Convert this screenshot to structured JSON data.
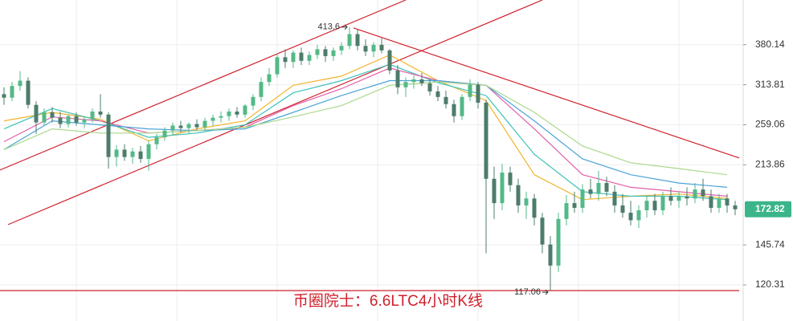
{
  "chart_data": {
    "type": "candlestick",
    "caption": "币圈院士：6.6LTC4小时K线",
    "log_scale": true,
    "ylim": [
      101.2,
      471
    ],
    "xlim": [
      -0.5,
      91.5
    ],
    "yticks": [
      380.14,
      313.81,
      259.06,
      213.86,
      145.74,
      120.31
    ],
    "grid": true,
    "up_color": "#53b987",
    "down_color": "#4d7c6a",
    "last_price_color": "#3bb58a",
    "candles": {
      "open": [
        300,
        295,
        312,
        320,
        285,
        262,
        275,
        268,
        260,
        270,
        262,
        266,
        276,
        272,
        222,
        230,
        222,
        228,
        220,
        236,
        244,
        252,
        258,
        255,
        260,
        256,
        264,
        268,
        270,
        276,
        272,
        284,
        296,
        318,
        330,
        358,
        350,
        366,
        352,
        362,
        372,
        360,
        370,
        378,
        400,
        378,
        368,
        380,
        370,
        336,
        310,
        318,
        322,
        316,
        304,
        296,
        286,
        270,
        296,
        314,
        288,
        200,
        178,
        206,
        194,
        176,
        182,
        166,
        146,
        132,
        165,
        178,
        174,
        190,
        186,
        196,
        188,
        176,
        170,
        164,
        172,
        180,
        172,
        184,
        180,
        184,
        182,
        190,
        184,
        174,
        182,
        176
      ],
      "high": [
        310,
        318,
        335,
        325,
        290,
        280,
        282,
        276,
        272,
        275,
        270,
        280,
        300,
        275,
        235,
        236,
        232,
        234,
        240,
        248,
        256,
        262,
        264,
        262,
        266,
        268,
        272,
        276,
        280,
        282,
        286,
        300,
        325,
        340,
        365,
        372,
        370,
        375,
        368,
        380,
        378,
        375,
        385,
        413.6,
        410,
        390,
        385,
        392,
        372,
        345,
        325,
        328,
        332,
        322,
        312,
        305,
        292,
        300,
        322,
        318,
        292,
        212,
        215,
        212,
        200,
        188,
        186,
        170,
        152,
        170,
        185,
        188,
        195,
        200,
        208,
        202,
        194,
        186,
        180,
        176,
        184,
        186,
        188,
        192,
        188,
        192,
        196,
        200,
        190,
        186,
        186,
        180
      ],
      "low": [
        285,
        290,
        305,
        280,
        248,
        258,
        262,
        255,
        256,
        258,
        255,
        262,
        268,
        210,
        212,
        218,
        215,
        216,
        208,
        230,
        240,
        246,
        250,
        248,
        252,
        252,
        258,
        262,
        264,
        268,
        268,
        278,
        290,
        312,
        325,
        340,
        340,
        345,
        345,
        355,
        350,
        352,
        362,
        372,
        370,
        360,
        358,
        365,
        330,
        300,
        296,
        308,
        312,
        298,
        290,
        280,
        262,
        265,
        290,
        280,
        140,
        165,
        172,
        188,
        170,
        165,
        160,
        140,
        117.06,
        128,
        160,
        170,
        170,
        182,
        180,
        184,
        170,
        166,
        160,
        158,
        166,
        168,
        168,
        176,
        174,
        176,
        178,
        180,
        170,
        170,
        170,
        168
      ],
      "close": [
        295,
        312,
        320,
        285,
        262,
        275,
        268,
        260,
        270,
        262,
        266,
        276,
        272,
        222,
        230,
        222,
        228,
        220,
        236,
        244,
        252,
        258,
        255,
        260,
        256,
        264,
        268,
        270,
        276,
        272,
        284,
        296,
        318,
        330,
        358,
        350,
        366,
        352,
        362,
        372,
        360,
        370,
        378,
        400,
        378,
        368,
        380,
        370,
        336,
        310,
        318,
        322,
        316,
        304,
        296,
        286,
        270,
        296,
        314,
        288,
        200,
        178,
        206,
        194,
        176,
        182,
        166,
        146,
        132,
        165,
        178,
        174,
        190,
        186,
        196,
        188,
        176,
        170,
        164,
        172,
        180,
        172,
        184,
        180,
        184,
        182,
        190,
        184,
        174,
        182,
        176,
        172.82
      ]
    },
    "moving_averages": [
      {
        "color": "#f2b32b",
        "x": [
          0,
          6,
          12,
          18,
          24,
          30,
          36,
          42,
          48,
          54,
          60,
          66,
          72,
          78,
          84,
          90
        ],
        "values": [
          264,
          275,
          266,
          240,
          254,
          264,
          313,
          327,
          362,
          320,
          291,
          204,
          181,
          184,
          186,
          182
        ]
      },
      {
        "color": "#3fc1b8",
        "x": [
          0,
          6,
          12,
          18,
          24,
          30,
          36,
          42,
          48,
          54,
          60,
          66,
          72,
          78,
          84,
          90
        ],
        "values": [
          254,
          280,
          264,
          244,
          249,
          259,
          302,
          320,
          346,
          317,
          298,
          225,
          188,
          184,
          184,
          181
        ]
      },
      {
        "color": "#e060a8",
        "x": [
          0,
          6,
          12,
          18,
          24,
          30,
          36,
          42,
          48,
          54,
          60,
          66,
          72,
          78,
          84,
          90
        ],
        "values": [
          239,
          269,
          264,
          249,
          252,
          256,
          284,
          308,
          340,
          320,
          313,
          254,
          204,
          192,
          188,
          184
        ]
      },
      {
        "color": "#4aa3d8",
        "x": [
          0,
          6,
          12,
          18,
          24,
          30,
          36,
          42,
          48,
          54,
          60,
          66,
          72,
          78,
          84,
          90
        ],
        "values": [
          230,
          264,
          259,
          254,
          252,
          254,
          275,
          298,
          320,
          320,
          313,
          264,
          220,
          204,
          196,
          192
        ]
      },
      {
        "color": "#a8d98a",
        "x": [
          0,
          6,
          12,
          18,
          24,
          30,
          36,
          42,
          48,
          54,
          60,
          66,
          72,
          78,
          84,
          90
        ],
        "values": [
          230,
          254,
          249,
          249,
          252,
          256,
          269,
          284,
          313,
          318,
          313,
          275,
          234,
          216,
          210,
          204
        ]
      }
    ],
    "trend_lines": [
      {
        "color": "#d0202c",
        "x": [
          -0.5,
          50
        ],
        "y": [
          208.6,
          471
        ]
      },
      {
        "color": "#d0202c",
        "x": [
          0.5,
          67
        ],
        "y": [
          160.6,
          471
        ]
      },
      {
        "color": "#d0202c",
        "x": [
          43.5,
          91.5
        ],
        "y": [
          412,
          221
        ]
      },
      {
        "color": "#d0202c",
        "x": [
          -0.5,
          91.5
        ],
        "y": [
          117.06,
          117.06
        ]
      }
    ]
  }
}
